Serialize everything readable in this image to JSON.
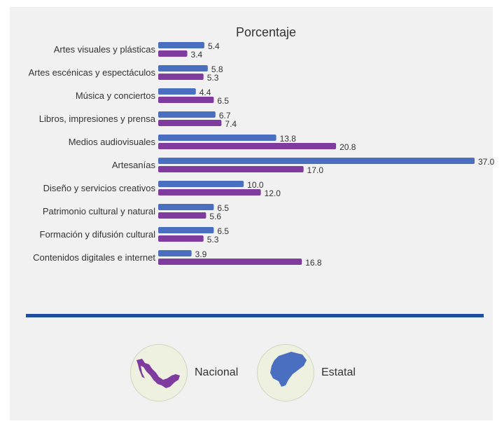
{
  "chart_data": {
    "type": "bar",
    "orientation": "horizontal",
    "title": "Porcentaje",
    "categories": [
      "Artes visuales y plásticas",
      "Artes escénicas y espectáculos",
      "Música y conciertos",
      "Libros, impresiones y prensa",
      "Medios audiovisuales",
      "Artesanías",
      "Diseño y servicios creativos",
      "Patrimonio cultural y natural",
      "Formación y difusión cultural",
      "Contenidos digitales e internet"
    ],
    "series": [
      {
        "name": "Nacional",
        "color": "#4b6fc0",
        "values": [
          5.4,
          5.8,
          4.4,
          6.7,
          13.8,
          37.0,
          10.0,
          6.5,
          6.5,
          3.9
        ],
        "labels": [
          "5.4",
          "5.8",
          "4.4",
          "6.7",
          "13.8",
          "37.0",
          "10.0",
          "6.5",
          "6.5",
          "3.9"
        ]
      },
      {
        "name": "Estatal",
        "color": "#7f3c9e",
        "values": [
          3.4,
          5.3,
          6.5,
          7.4,
          20.8,
          17.0,
          12.0,
          5.6,
          5.3,
          16.8
        ],
        "labels": [
          "3.4",
          "5.3",
          "6.5",
          "7.4",
          "20.8",
          "17.0",
          "12.0",
          "5.6",
          "5.3",
          "16.8"
        ]
      }
    ],
    "xlim": [
      0,
      37.0
    ],
    "grid": false,
    "legend_position": "bottom"
  },
  "colors": {
    "divider": "#1f4e9e",
    "badge_bg": "#eef0e0",
    "nacional_map": "#7f3c9e",
    "estatal_map": "#4b6fc0"
  },
  "legend": {
    "nacional_icon": "mexico-map-icon",
    "estatal_icon": "state-map-icon"
  }
}
